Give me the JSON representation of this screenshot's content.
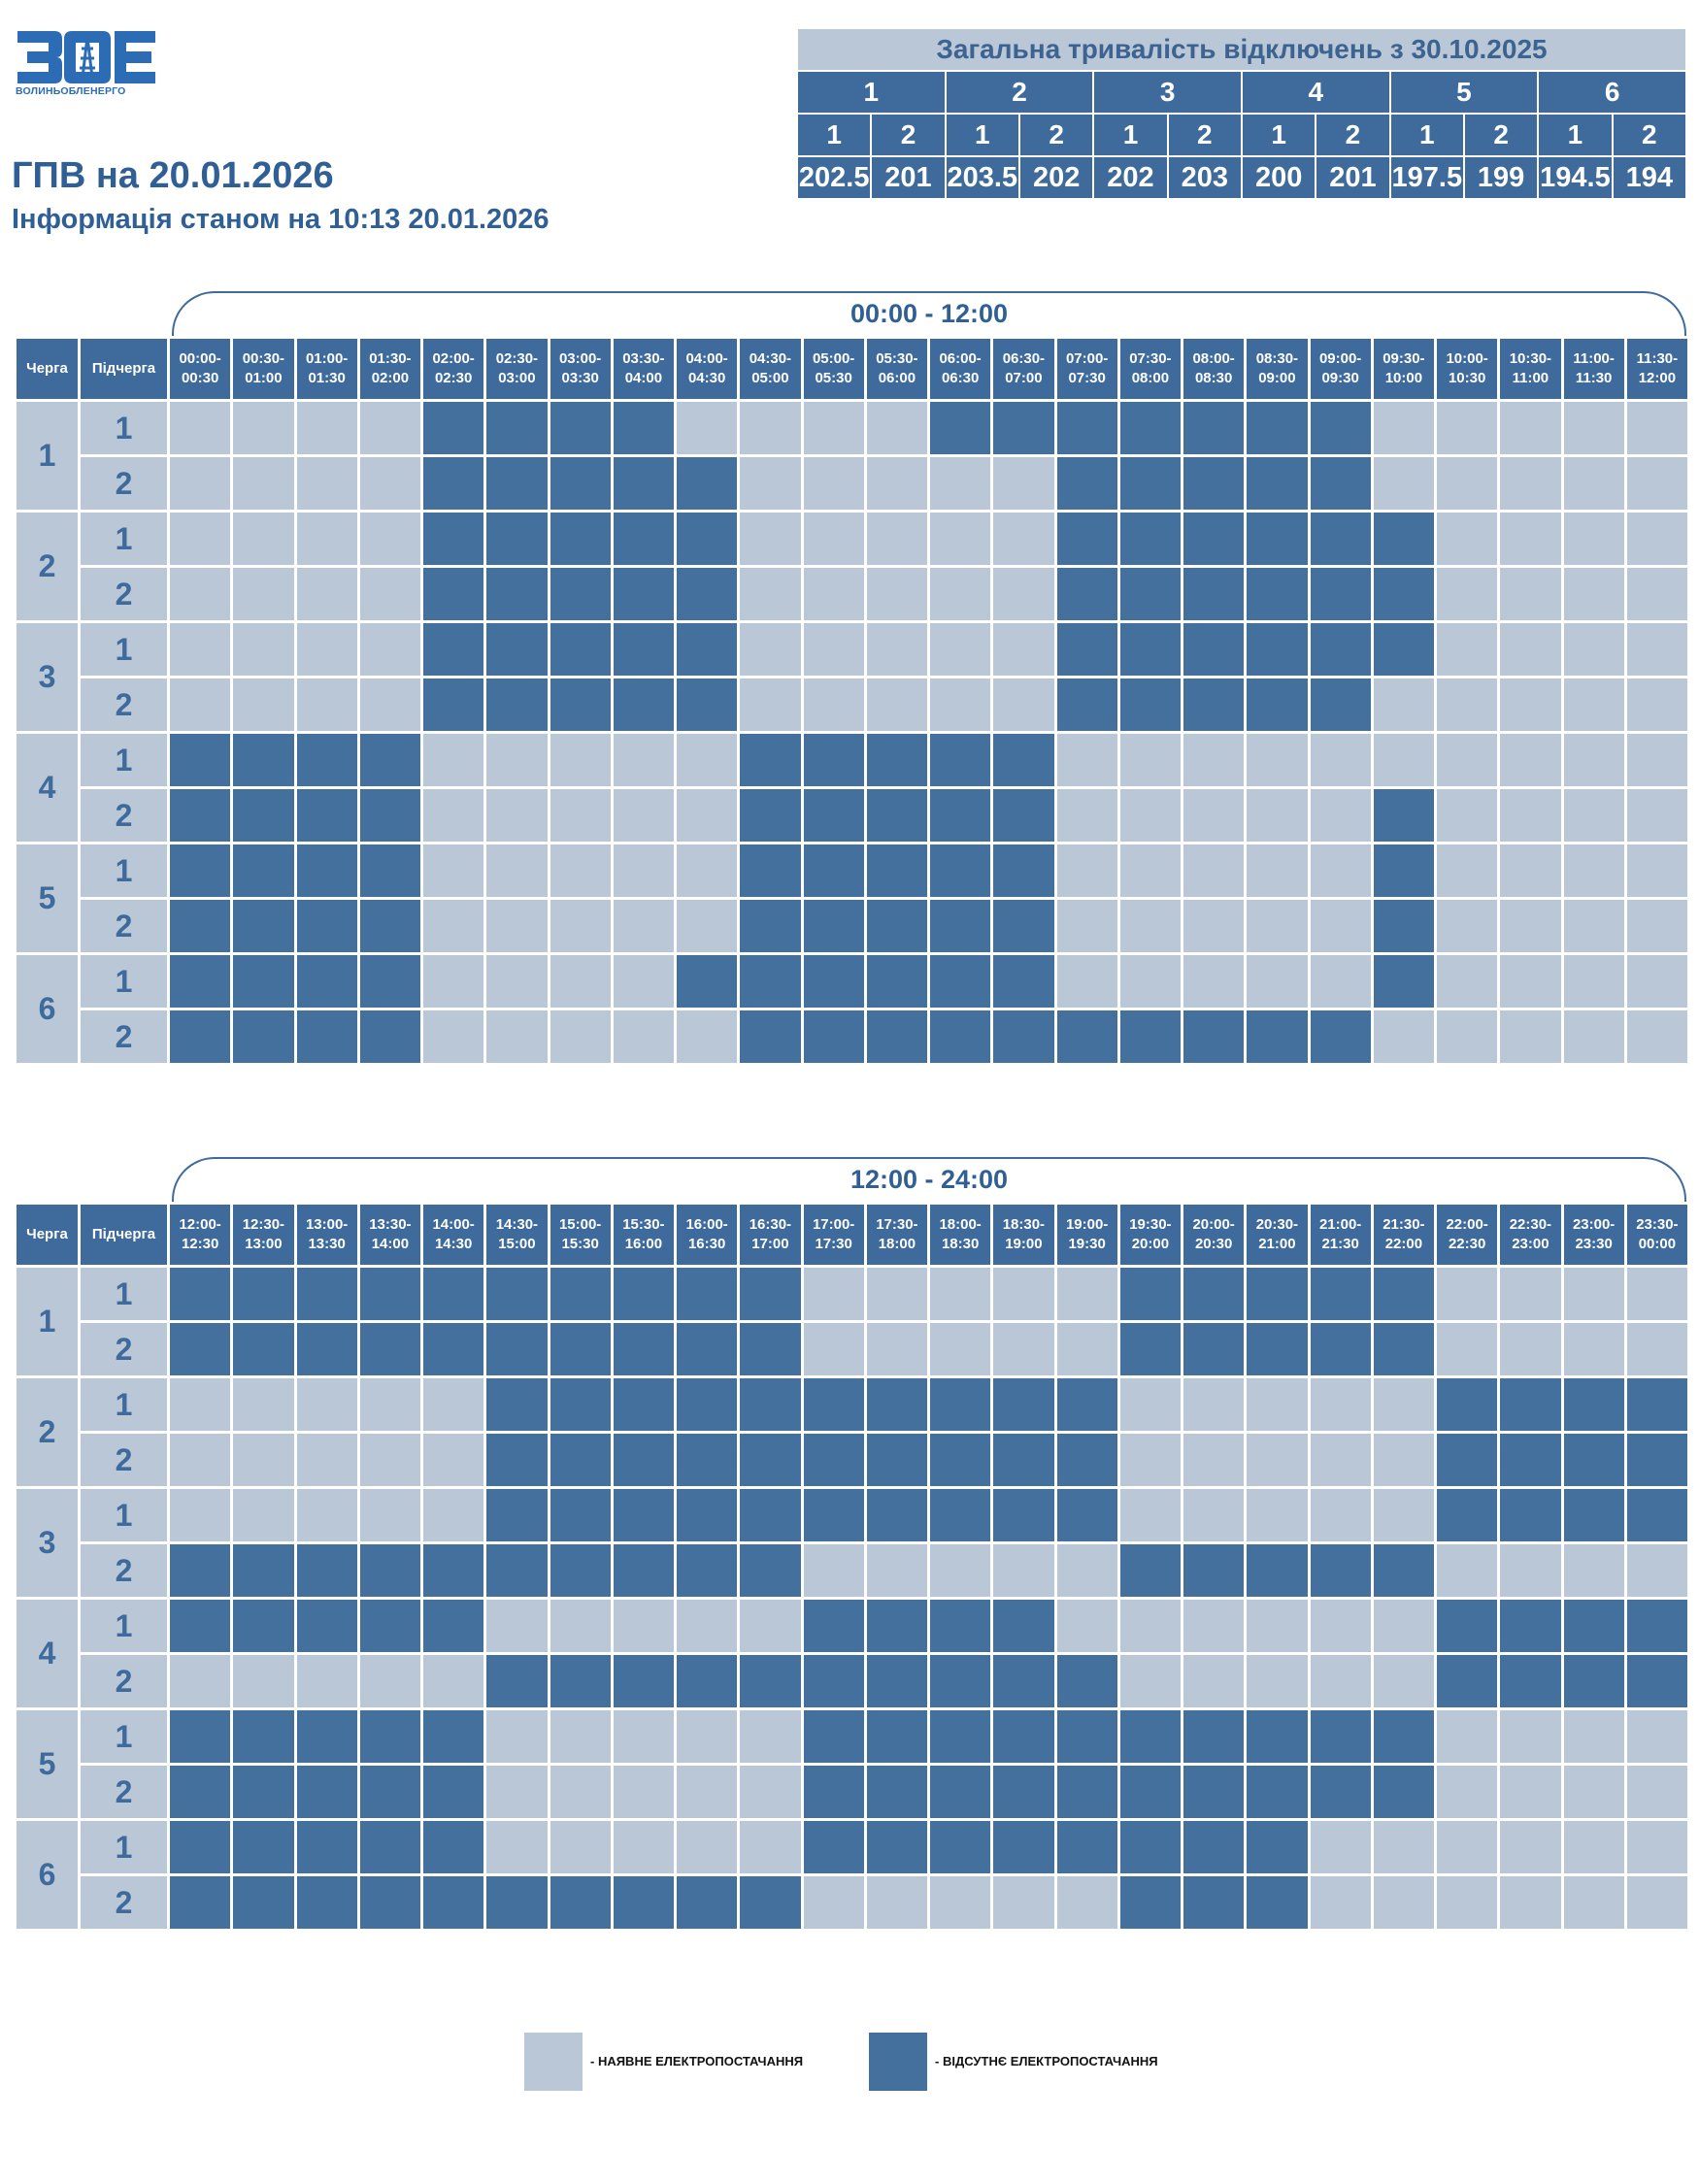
{
  "logo": {
    "text": "ВОЛИНЬОБЛЕНЕРГО"
  },
  "header": {
    "title": "ГПВ на 20.01.2026",
    "subtitle": "Інформація станом на 10:13 20.01.2026"
  },
  "summary": {
    "title": "Загальна тривалість відключень з 30.10.2025",
    "queues": [
      "1",
      "2",
      "3",
      "4",
      "5",
      "6"
    ],
    "subqueues": [
      "1",
      "2",
      "1",
      "2",
      "1",
      "2",
      "1",
      "2",
      "1",
      "2",
      "1",
      "2"
    ],
    "values": [
      "202.5",
      "201",
      "203.5",
      "202",
      "202",
      "203",
      "200",
      "201",
      "197.5",
      "199",
      "194.5",
      "194"
    ]
  },
  "colors": {
    "available": "#b9c7d6",
    "absent": "#44709e",
    "header": "#3f6b9c",
    "text": "#2f5f95"
  },
  "schedule": {
    "col_queue": "Черга",
    "col_subqueue": "Підчерга",
    "queue_labels": [
      "1",
      "2",
      "3",
      "4",
      "5",
      "6"
    ],
    "subqueue_labels": [
      "1",
      "2"
    ],
    "periods": [
      {
        "label": "00:00 - 12:00",
        "slots": [
          "00:00-",
          "00:30-",
          "01:00-",
          "01:30-",
          "02:00-",
          "02:30-",
          "03:00-",
          "03:30-",
          "04:00-",
          "04:30-",
          "05:00-",
          "05:30-",
          "06:00-",
          "06:30-",
          "07:00-",
          "07:30-",
          "08:00-",
          "08:30-",
          "09:00-",
          "09:30-",
          "10:00-",
          "10:30-",
          "11:00-",
          "11:30-"
        ],
        "slots_end": [
          "00:30",
          "01:00",
          "01:30",
          "02:00",
          "02:30",
          "03:00",
          "03:30",
          "04:00",
          "04:30",
          "05:00",
          "05:30",
          "06:00",
          "06:30",
          "07:00",
          "07:30",
          "08:00",
          "08:30",
          "09:00",
          "09:30",
          "10:00",
          "10:30",
          "11:00",
          "11:30",
          "12:00"
        ],
        "rows": [
          "000011110000111111100000",
          "000011111000001111100000",
          "000011111000001111110000",
          "000011111000001111110000",
          "000011111000001111110000",
          "000011111000001111100000",
          "111100000111110000000000",
          "111100000111110000010000",
          "111100000111110000010000",
          "111100000111110000010000",
          "111100001111110000010000",
          "111100000111111111100000"
        ]
      },
      {
        "label": "12:00 - 24:00",
        "slots": [
          "12:00-",
          "12:30-",
          "13:00-",
          "13:30-",
          "14:00-",
          "14:30-",
          "15:00-",
          "15:30-",
          "16:00-",
          "16:30-",
          "17:00-",
          "17:30-",
          "18:00-",
          "18:30-",
          "19:00-",
          "19:30-",
          "20:00-",
          "20:30-",
          "21:00-",
          "21:30-",
          "22:00-",
          "22:30-",
          "23:00-",
          "23:30-"
        ],
        "slots_end": [
          "12:30",
          "13:00",
          "13:30",
          "14:00",
          "14:30",
          "15:00",
          "15:30",
          "16:00",
          "16:30",
          "17:00",
          "17:30",
          "18:00",
          "18:30",
          "19:00",
          "19:30",
          "20:00",
          "20:30",
          "21:00",
          "21:30",
          "22:00",
          "22:30",
          "23:00",
          "23:30",
          "00:00"
        ],
        "rows": [
          "111111111100000111110000",
          "111111111100000111110000",
          "000001111111111000001111",
          "000001111111111000001111",
          "000001111111111000001111",
          "111111111100000111110000",
          "111110000011110000001111",
          "000001111111111000001111",
          "111110000011111111110000",
          "111110000011111111110000",
          "111110000011111111000000",
          "111111111100000111000000"
        ]
      }
    ]
  },
  "legend": {
    "available": "- НАЯВНЕ ЕЛЕКТРОПОСТАЧАННЯ",
    "absent": "- ВІДСУТНЄ ЕЛЕКТРОПОСТАЧАННЯ"
  }
}
